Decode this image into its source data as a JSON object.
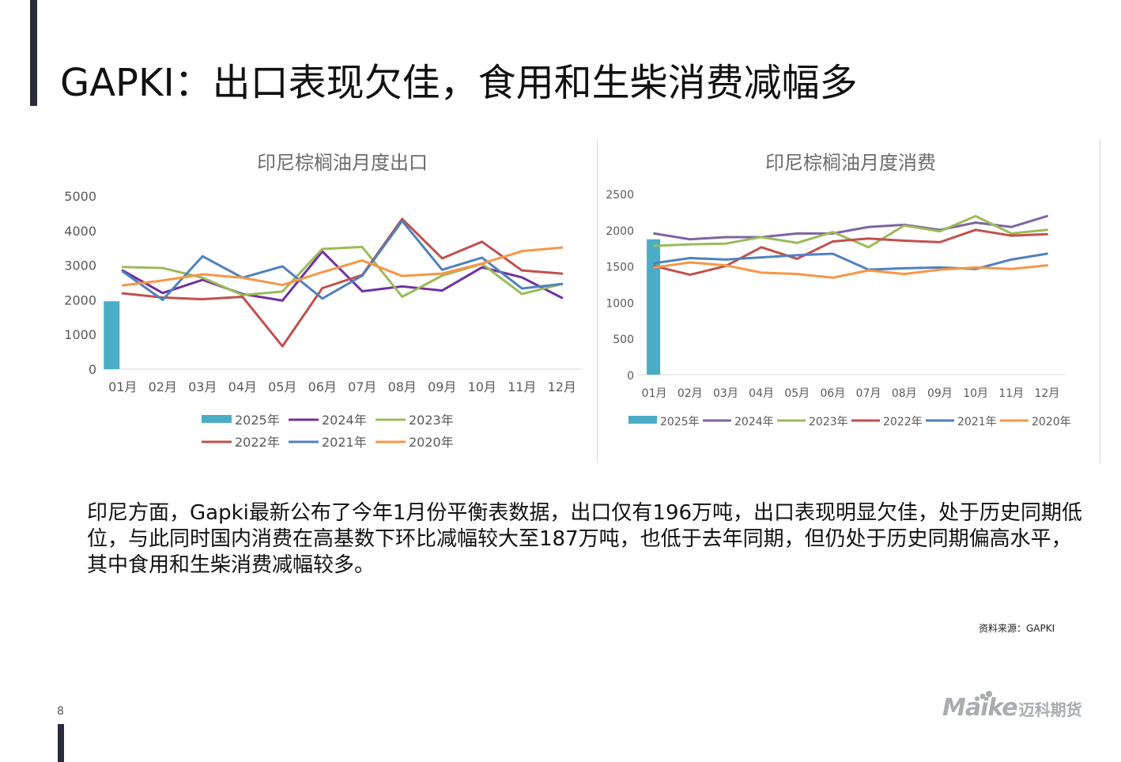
{
  "page": {
    "title": "GAPKI：出口表现欠佳，食用和生柴消费减幅多",
    "body_text": "印尼方面，Gapki最新公布了今年1月份平衡表数据，出口仅有196万吨，出口表现明显欠佳，处于历史同期低位，与此同时国内消费在高基数下环比减幅较大至187万吨，也低于去年同期，但仍处于历史同期偏高水平，其中食用和生柴消费减幅较多。",
    "source": "资料来源：GAPKI",
    "page_number": "8",
    "logo": {
      "brand": "Maike",
      "cn": "迈科期货"
    }
  },
  "chart_data": [
    {
      "type": "bar+line",
      "title": "印尼棕榈油月度出口",
      "categories": [
        "01月",
        "02月",
        "03月",
        "04月",
        "05月",
        "06月",
        "07月",
        "08月",
        "09月",
        "10月",
        "11月",
        "12月"
      ],
      "ylim": [
        0,
        5000
      ],
      "yticks": [
        0,
        1000,
        2000,
        3000,
        4000,
        5000
      ],
      "bar_series": {
        "name": "2025年",
        "color": "#4bacc6",
        "values": [
          1960
        ]
      },
      "series": [
        {
          "name": "2024年",
          "color": "#7030a0",
          "values": [
            2850,
            2200,
            2580,
            2170,
            1980,
            3400,
            2250,
            2390,
            2270,
            2940,
            2650,
            2060
          ]
        },
        {
          "name": "2023年",
          "color": "#9bbb59",
          "values": [
            2950,
            2920,
            2640,
            2140,
            2240,
            3470,
            3530,
            2090,
            2700,
            3040,
            2170,
            2460
          ]
        },
        {
          "name": "2022年",
          "color": "#c0504d",
          "values": [
            2190,
            2070,
            2020,
            2090,
            660,
            2340,
            2720,
            4340,
            3200,
            3680,
            2850,
            2760
          ]
        },
        {
          "name": "2021年",
          "color": "#4f81bd",
          "values": [
            2820,
            2000,
            3260,
            2640,
            2970,
            2040,
            2700,
            4280,
            2870,
            3220,
            2330,
            2460
          ]
        },
        {
          "name": "2020年",
          "color": "#f79646",
          "values": [
            2420,
            2560,
            2740,
            2640,
            2430,
            2800,
            3140,
            2690,
            2760,
            3050,
            3410,
            3510
          ]
        }
      ],
      "legend_rows": [
        [
          "2025年",
          "2024年",
          "2023年"
        ],
        [
          "2022年",
          "2021年",
          "2020年"
        ]
      ]
    },
    {
      "type": "bar+line",
      "title": "印尼棕榈油月度消费",
      "categories": [
        "01月",
        "02月",
        "03月",
        "04月",
        "05月",
        "06月",
        "07月",
        "08月",
        "09月",
        "10月",
        "11月",
        "12月"
      ],
      "ylim": [
        0,
        2500
      ],
      "yticks": [
        0,
        500,
        1000,
        1500,
        2000,
        2500
      ],
      "bar_series": {
        "name": "2025年",
        "color": "#4bacc6",
        "values": [
          1870
        ]
      },
      "series": [
        {
          "name": "2024年",
          "color": "#8064a2",
          "values": [
            1950,
            1870,
            1900,
            1900,
            1950,
            1950,
            2040,
            2070,
            2000,
            2100,
            2040,
            2190
          ]
        },
        {
          "name": "2023年",
          "color": "#9bbb59",
          "values": [
            1780,
            1800,
            1810,
            1900,
            1820,
            1970,
            1760,
            2060,
            1980,
            2190,
            1950,
            2000
          ]
        },
        {
          "name": "2022年",
          "color": "#c0504d",
          "values": [
            1500,
            1380,
            1500,
            1760,
            1600,
            1840,
            1880,
            1850,
            1830,
            2000,
            1920,
            1940
          ]
        },
        {
          "name": "2021年",
          "color": "#4f81bd",
          "values": [
            1540,
            1610,
            1590,
            1620,
            1650,
            1670,
            1450,
            1470,
            1480,
            1460,
            1590,
            1670
          ]
        },
        {
          "name": "2020年",
          "color": "#f79646",
          "values": [
            1480,
            1550,
            1510,
            1410,
            1390,
            1340,
            1440,
            1390,
            1450,
            1480,
            1460,
            1510
          ]
        }
      ],
      "legend_rows": [
        [
          "2025年",
          "2024年",
          "2023年",
          "2022年",
          "2021年",
          "2020年"
        ]
      ]
    }
  ]
}
